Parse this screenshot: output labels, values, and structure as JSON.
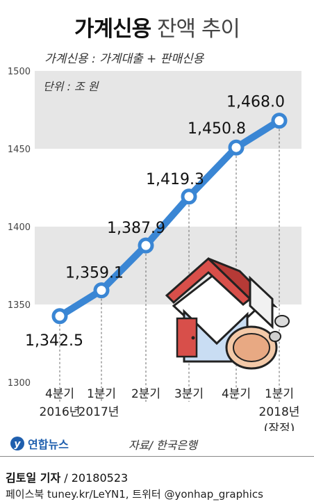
{
  "header": {
    "title_bold": "가계신용",
    "title_rest": "잔액 추이",
    "formula": "가계신용 : 가계대출 + 판매신용"
  },
  "chart_data": {
    "type": "line",
    "unit_label": "단위 : 조 원",
    "categories": [
      "4분기",
      "1분기",
      "2분기",
      "3분기",
      "4분기",
      "1분기"
    ],
    "year_labels": [
      "2016년",
      "2017년",
      "",
      "",
      "",
      "2018년"
    ],
    "notes": [
      "",
      "",
      "",
      "",
      "",
      "(잠정)"
    ],
    "values": [
      1342.5,
      1359.1,
      1387.9,
      1419.3,
      1450.8,
      1468.0
    ],
    "value_labels": [
      "1,342.5",
      "1,359.1",
      "1,387.9",
      "1,419.3",
      "1,450.8",
      "1,468.0"
    ],
    "ylim": [
      1300,
      1500
    ],
    "yticks": [
      1300,
      1350,
      1400,
      1450,
      1500
    ],
    "ytick_labels": [
      "1300",
      "1350",
      "1400",
      "1450",
      "1500"
    ],
    "line_color": "#3a86d4",
    "band_color": "#e6e6e6"
  },
  "footer": {
    "logo": "연합뉴스",
    "source": "자료/ 한국은행",
    "reporter_name": "김토일 기자",
    "reporter_date": " / 20180523",
    "social": "페이스북 tuney.kr/LeYN1, 트위터 @yonhap_graphics"
  }
}
